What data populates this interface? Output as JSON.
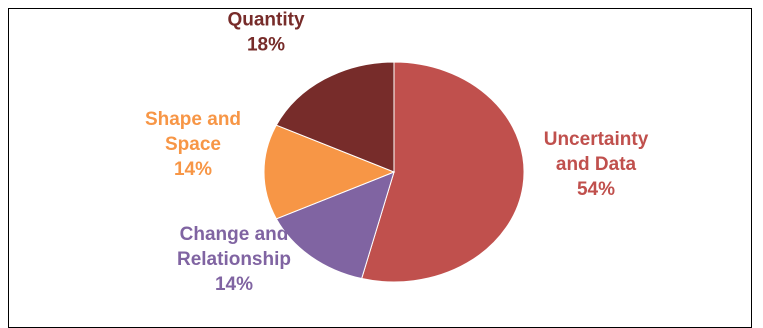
{
  "chart_data": {
    "type": "pie",
    "title": "",
    "slices": [
      {
        "label_lines": [
          "Uncertainty",
          "and Data"
        ],
        "percent_label": "54%",
        "value": 54,
        "color": "#c0504d"
      },
      {
        "label_lines": [
          "Change and",
          "Relationship"
        ],
        "percent_label": "14%",
        "value": 14,
        "color": "#8064a2"
      },
      {
        "label_lines": [
          "Shape and",
          "Space"
        ],
        "percent_label": "14%",
        "value": 14,
        "color": "#f79646"
      },
      {
        "label_lines": [
          "Quantity"
        ],
        "percent_label": "18%",
        "value": 18,
        "color": "#772c2a"
      }
    ],
    "start": "top",
    "direction": "clockwise",
    "legend": "none"
  }
}
